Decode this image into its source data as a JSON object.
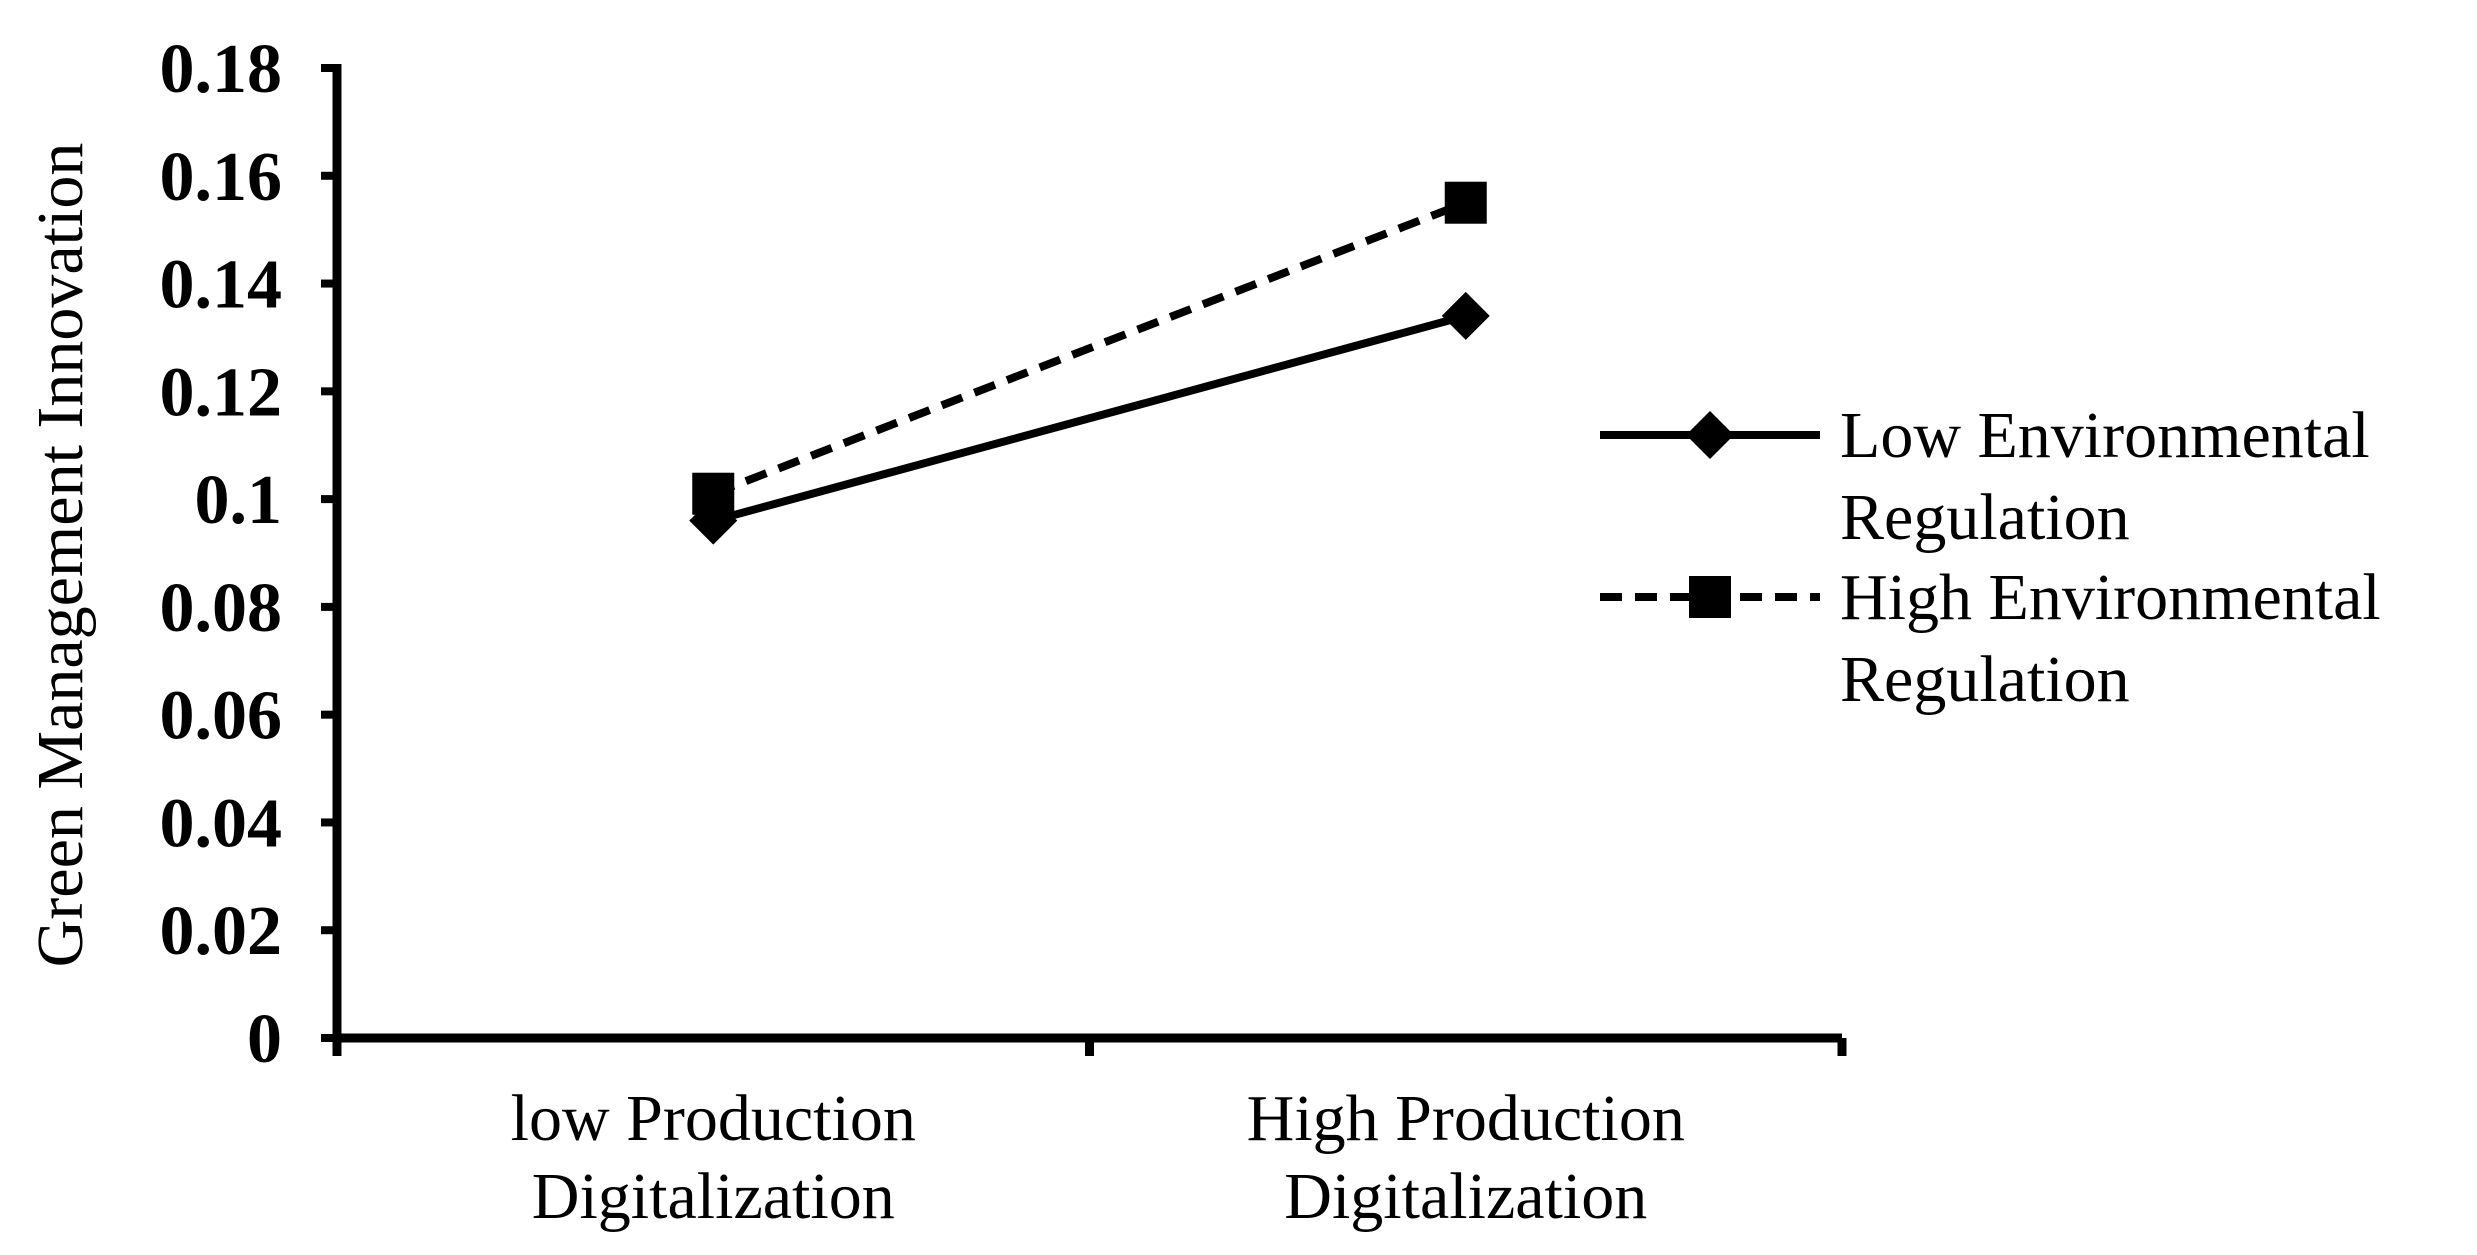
{
  "chart_data": {
    "type": "line",
    "title": "",
    "xlabel": "",
    "ylabel": "Green Management Innovation",
    "categories": [
      [
        "low Production",
        "Digitalization"
      ],
      [
        "High Production",
        "Digitalization"
      ]
    ],
    "ylim": [
      0,
      0.18
    ],
    "yticks": [
      "0",
      "0.02",
      "0.04",
      "0.06",
      "0.08",
      "0.1",
      "0.12",
      "0.14",
      "0.16",
      "0.18"
    ],
    "grid": false,
    "legend_position": "right",
    "series": [
      {
        "name_lines": [
          "Low Environmental",
          "Regulation"
        ],
        "values": [
          0.096,
          0.134
        ],
        "marker": "diamond",
        "line_style": "solid",
        "color": "#000000"
      },
      {
        "name_lines": [
          "High Environmental",
          "Regulation"
        ],
        "values": [
          0.101,
          0.155
        ],
        "marker": "square",
        "line_style": "dashed",
        "color": "#000000"
      }
    ]
  }
}
